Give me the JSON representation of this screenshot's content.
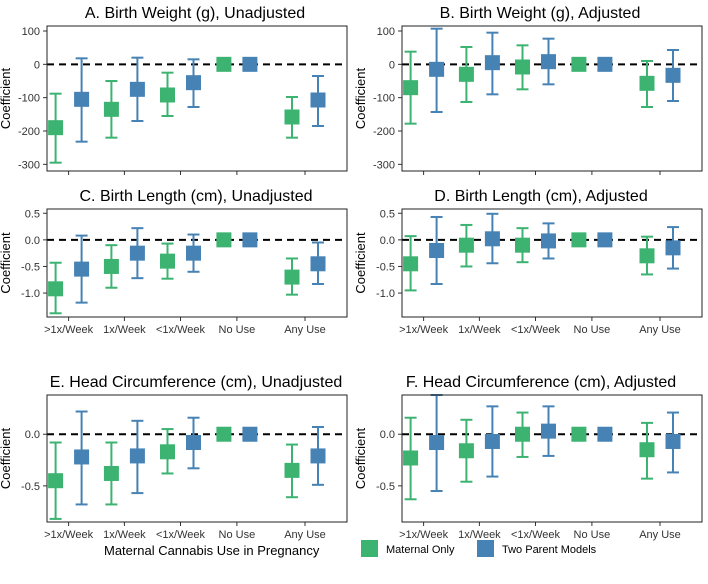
{
  "legend": {
    "title": "Maternal Cannabis Use in Pregnancy",
    "items": [
      {
        "name": "Maternal Only",
        "color": "#3cb371"
      },
      {
        "name": "Two Parent Models",
        "color": "#4682b4"
      }
    ]
  },
  "chart_data": [
    {
      "type": "errorbar",
      "title": "A. Birth Weight (g), Unadjusted",
      "ylabel": "Coefficient",
      "ylim": [
        -320,
        115
      ],
      "yticks": [
        100,
        0,
        -100,
        -200,
        -300
      ],
      "categories": [
        ">1x/Week",
        "1x/Week",
        "<1x/Week",
        "No Use",
        "Any Use"
      ],
      "show_x_ticks": false,
      "series": [
        {
          "name": "Maternal Only",
          "estimate": [
            -190,
            -135,
            -92,
            0,
            -158
          ],
          "lower": [
            -295,
            -220,
            -155,
            0,
            -220
          ],
          "upper": [
            -88,
            -50,
            -25,
            0,
            -98
          ]
        },
        {
          "name": "Two Parent Models",
          "estimate": [
            -105,
            -75,
            -55,
            0,
            -107
          ],
          "lower": [
            -232,
            -170,
            -128,
            0,
            -185
          ],
          "upper": [
            18,
            20,
            15,
            0,
            -35
          ]
        }
      ]
    },
    {
      "type": "errorbar",
      "title": "B. Birth Weight (g), Adjusted",
      "ylabel": "Coefficient",
      "ylim": [
        -320,
        115
      ],
      "yticks": [
        100,
        0,
        -100,
        -200,
        -300
      ],
      "categories": [
        ">1x/Week",
        "1x/Week",
        "<1x/Week",
        "No Use",
        "Any Use"
      ],
      "show_x_ticks": false,
      "series": [
        {
          "name": "Maternal Only",
          "estimate": [
            -70,
            -30,
            -8,
            0,
            -57
          ],
          "lower": [
            -178,
            -113,
            -75,
            0,
            -128
          ],
          "upper": [
            38,
            52,
            57,
            0,
            10
          ]
        },
        {
          "name": "Two Parent Models",
          "estimate": [
            -15,
            5,
            8,
            0,
            -33
          ],
          "lower": [
            -143,
            -90,
            -60,
            0,
            -110
          ],
          "upper": [
            107,
            95,
            77,
            0,
            43
          ]
        }
      ]
    },
    {
      "type": "errorbar",
      "title": "C. Birth Length (cm), Unadjusted",
      "ylabel": "Coefficient",
      "ylim": [
        -1.45,
        0.58
      ],
      "yticks": [
        0.5,
        0.0,
        -0.5,
        -1.0
      ],
      "tick_decimals": 1,
      "categories": [
        ">1x/Week",
        "1x/Week",
        "<1x/Week",
        "No Use",
        "Any Use"
      ],
      "show_x_ticks": true,
      "series": [
        {
          "name": "Maternal Only",
          "estimate": [
            -0.92,
            -0.5,
            -0.4,
            0,
            -0.7
          ],
          "lower": [
            -1.38,
            -0.9,
            -0.73,
            0,
            -1.03
          ],
          "upper": [
            -0.43,
            -0.1,
            -0.07,
            0,
            -0.35
          ]
        },
        {
          "name": "Two Parent Models",
          "estimate": [
            -0.55,
            -0.25,
            -0.25,
            0,
            -0.45
          ],
          "lower": [
            -1.18,
            -0.72,
            -0.6,
            0,
            -0.83
          ],
          "upper": [
            0.08,
            0.22,
            0.1,
            0,
            -0.05
          ]
        }
      ]
    },
    {
      "type": "errorbar",
      "title": "D. Birth Length (cm), Adjusted",
      "ylabel": "Coefficient",
      "ylim": [
        -1.45,
        0.58
      ],
      "yticks": [
        0.5,
        0.0,
        -0.5,
        -1.0
      ],
      "tick_decimals": 1,
      "categories": [
        ">1x/Week",
        "1x/Week",
        "<1x/Week",
        "No Use",
        "Any Use"
      ],
      "show_x_ticks": true,
      "series": [
        {
          "name": "Maternal Only",
          "estimate": [
            -0.45,
            -0.1,
            -0.1,
            0,
            -0.3
          ],
          "lower": [
            -0.95,
            -0.5,
            -0.42,
            0,
            -0.65
          ],
          "upper": [
            0.07,
            0.28,
            0.22,
            0,
            0.06
          ]
        },
        {
          "name": "Two Parent Models",
          "estimate": [
            -0.2,
            0.02,
            -0.02,
            0,
            -0.15
          ],
          "lower": [
            -0.83,
            -0.44,
            -0.35,
            0,
            -0.54
          ],
          "upper": [
            0.43,
            0.49,
            0.31,
            0,
            0.24
          ]
        }
      ]
    },
    {
      "type": "errorbar",
      "title": "E. Head Circumference (cm), Unadjusted",
      "ylabel": "Coefficient",
      "ylim": [
        -0.85,
        0.38
      ],
      "yticks": [
        0.0,
        -0.5
      ],
      "tick_decimals": 1,
      "categories": [
        ">1x/Week",
        "1x/Week",
        "<1x/Week",
        "No Use",
        "Any Use"
      ],
      "show_x_ticks": true,
      "series": [
        {
          "name": "Maternal Only",
          "estimate": [
            -0.45,
            -0.38,
            -0.17,
            0,
            -0.35
          ],
          "lower": [
            -0.82,
            -0.68,
            -0.38,
            0,
            -0.61
          ],
          "upper": [
            -0.08,
            -0.08,
            0.05,
            0,
            -0.1
          ]
        },
        {
          "name": "Two Parent Models",
          "estimate": [
            -0.22,
            -0.21,
            -0.08,
            0,
            -0.21
          ],
          "lower": [
            -0.68,
            -0.57,
            -0.33,
            0,
            -0.49
          ],
          "upper": [
            0.22,
            0.13,
            0.16,
            0,
            0.07
          ]
        }
      ]
    },
    {
      "type": "errorbar",
      "title": "F. Head Circumference (cm), Adjusted",
      "ylabel": "Coefficient",
      "ylim": [
        -0.85,
        0.38
      ],
      "yticks": [
        0.0,
        -0.5
      ],
      "tick_decimals": 1,
      "categories": [
        ">1x/Week",
        "1x/Week",
        "<1x/Week",
        "No Use",
        "Any Use"
      ],
      "show_x_ticks": true,
      "series": [
        {
          "name": "Maternal Only",
          "estimate": [
            -0.23,
            -0.16,
            0,
            0,
            -0.15
          ],
          "lower": [
            -0.63,
            -0.46,
            -0.22,
            0,
            -0.43
          ],
          "upper": [
            0.16,
            0.14,
            0.21,
            0,
            0.11
          ]
        },
        {
          "name": "Two Parent Models",
          "estimate": [
            -0.08,
            -0.07,
            0.03,
            0,
            -0.07
          ],
          "lower": [
            -0.55,
            -0.41,
            -0.21,
            0,
            -0.37
          ],
          "upper": [
            0.38,
            0.27,
            0.27,
            0,
            0.21
          ]
        }
      ]
    }
  ]
}
